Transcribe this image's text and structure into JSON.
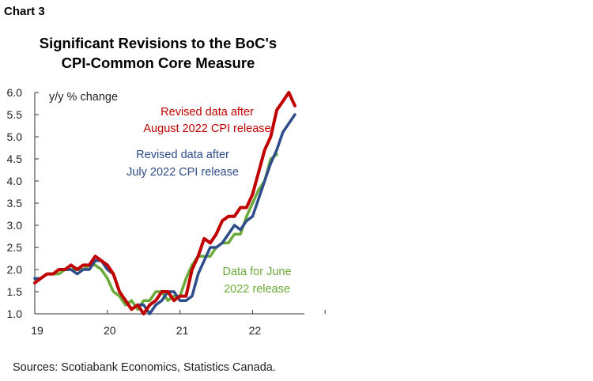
{
  "header": {
    "chart_label": "Chart 3",
    "title_line1": "Significant Revisions to the BoC's",
    "title_line2": "CPI-Common Core Measure"
  },
  "footer": {
    "source": "Sources: Scotiabank Economics, Statistics Canada."
  },
  "colors": {
    "aug_revision": "#c00000",
    "july_revision": "#2e4d8a",
    "june_release": "#6aaa3a"
  },
  "chart_data": {
    "type": "line",
    "title": "Significant Revisions to the BoC's CPI-Common Core Measure",
    "ylabel": "y/y % change",
    "ylim": [
      1.0,
      6.0
    ],
    "y_ticks": [
      "1.0",
      "1.5",
      "2.0",
      "2.5",
      "3.0",
      "3.5",
      "4.0",
      "4.5",
      "5.0",
      "5.5",
      "6.0"
    ],
    "x_ticks": [
      "19",
      "20",
      "21",
      "22"
    ],
    "x_start": "2019-01",
    "grid": false,
    "series": [
      {
        "label_line1": "Data for June",
        "label_line2": "2022 release",
        "color": "#6aaa3a",
        "values": [
          1.8,
          1.8,
          1.9,
          1.9,
          1.9,
          2.0,
          2.0,
          2.0,
          2.0,
          2.1,
          2.1,
          2.0,
          1.8,
          1.5,
          1.4,
          1.2,
          1.3,
          1.1,
          1.3,
          1.3,
          1.5,
          1.5,
          1.3,
          1.4,
          1.4,
          1.8,
          2.1,
          2.3,
          2.3,
          2.3,
          2.5,
          2.6,
          2.6,
          2.8,
          2.8,
          3.2,
          3.5,
          3.8,
          4.0,
          4.5,
          4.6
        ]
      },
      {
        "label_line1": "Revised data after",
        "label_line2": "July 2022 CPI release",
        "color": "#2e4d8a",
        "values": [
          1.8,
          1.8,
          1.9,
          1.9,
          2.0,
          2.0,
          2.0,
          1.9,
          2.0,
          2.0,
          2.2,
          2.2,
          2.0,
          1.9,
          1.5,
          1.3,
          1.1,
          1.2,
          1.2,
          1.0,
          1.2,
          1.3,
          1.5,
          1.5,
          1.3,
          1.3,
          1.4,
          1.9,
          2.2,
          2.5,
          2.5,
          2.6,
          2.8,
          3.0,
          2.9,
          3.1,
          3.2,
          3.6,
          4.0,
          4.4,
          4.7,
          5.1,
          5.3,
          5.5
        ]
      },
      {
        "label_line1": "Revised data after",
        "label_line2": "August 2022 CPI release",
        "color": "#c00000",
        "values": [
          1.7,
          1.8,
          1.9,
          1.9,
          2.0,
          2.0,
          2.1,
          2.0,
          2.1,
          2.1,
          2.3,
          2.2,
          2.1,
          1.9,
          1.5,
          1.3,
          1.1,
          1.2,
          1.0,
          1.2,
          1.3,
          1.5,
          1.5,
          1.3,
          1.4,
          1.4,
          2.0,
          2.3,
          2.7,
          2.6,
          2.8,
          3.1,
          3.2,
          3.2,
          3.4,
          3.4,
          3.7,
          4.2,
          4.7,
          5.0,
          5.6,
          5.8,
          6.0,
          5.7
        ]
      }
    ]
  }
}
